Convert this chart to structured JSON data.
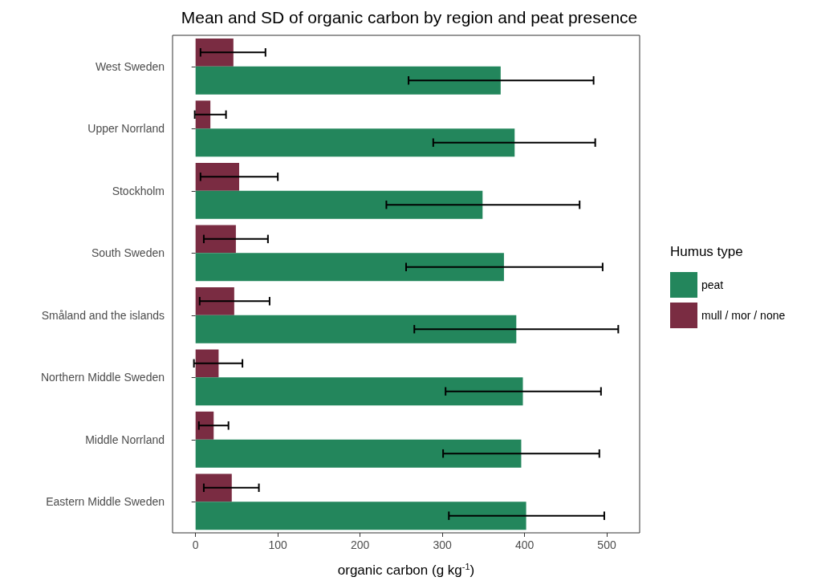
{
  "chart_data": {
    "type": "bar",
    "orientation": "horizontal",
    "title": "Mean and SD of organic carbon by region and peat presence",
    "xlabel": "organic carbon (g kg$^{-1}$)",
    "legend_title": "Humus type",
    "categories": [
      "West Sweden",
      "Upper Norrland",
      "Stockholm",
      "South Sweden",
      "Småland and the islands",
      "Northern Middle Sweden",
      "Middle Norrland",
      "Eastern Middle Sweden"
    ],
    "series": [
      {
        "name": "peat",
        "color": "#23865c",
        "values": [
          371,
          388,
          349,
          375,
          390,
          398,
          396,
          402
        ],
        "errors": [
          [
            259,
            484
          ],
          [
            289,
            486
          ],
          [
            232,
            467
          ],
          [
            256,
            495
          ],
          [
            266,
            514
          ],
          [
            304,
            493
          ],
          [
            301,
            491
          ],
          [
            308,
            497
          ]
        ]
      },
      {
        "name": "mull / mor / none",
        "color": "#7a2c42",
        "values": [
          46,
          18,
          53,
          49,
          47,
          28,
          22,
          44
        ],
        "errors": [
          [
            6,
            85
          ],
          [
            -1,
            37
          ],
          [
            6,
            100
          ],
          [
            10,
            88
          ],
          [
            5,
            90
          ],
          [
            -2,
            57
          ],
          [
            4,
            40
          ],
          [
            10,
            77
          ]
        ]
      }
    ],
    "xlim": [
      -28,
      540
    ],
    "xticks": [
      0,
      100,
      200,
      300,
      400,
      500
    ],
    "grid": false,
    "legend": "right"
  }
}
